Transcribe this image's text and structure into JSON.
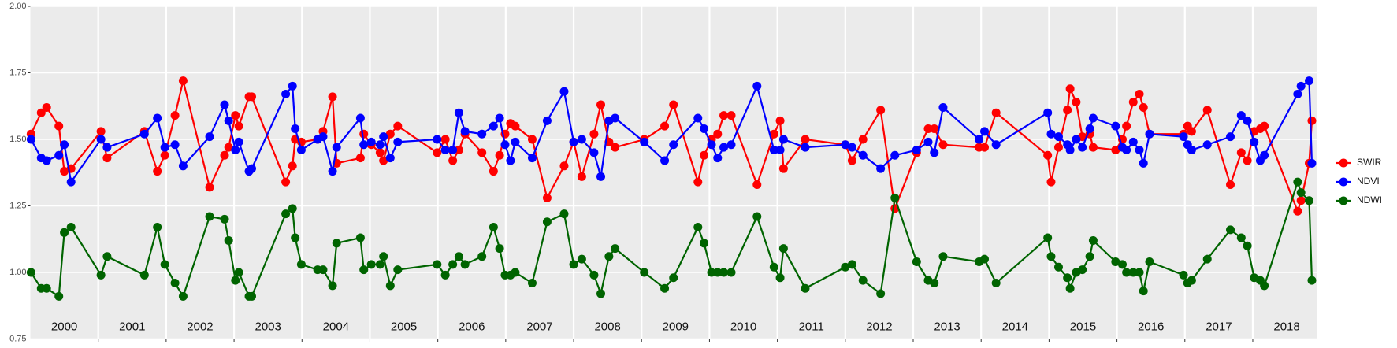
{
  "chart_data": {
    "type": "line",
    "x": [
      2000.01,
      2000.16,
      2000.24,
      2000.42,
      2000.5,
      2000.6,
      2001.04,
      2001.13,
      2001.68,
      2001.87,
      2001.98,
      2002.13,
      2002.25,
      2002.64,
      2002.86,
      2002.92,
      2003.02,
      2003.07,
      2003.22,
      2003.26,
      2003.76,
      2003.86,
      2003.9,
      2003.99,
      2004.23,
      2004.31,
      2004.45,
      2004.51,
      2004.86,
      2004.91,
      2005.02,
      2005.15,
      2005.2,
      2005.3,
      2005.41,
      2005.99,
      2006.11,
      2006.22,
      2006.31,
      2006.4,
      2006.65,
      2006.82,
      2006.91,
      2006.99,
      2007.07,
      2007.14,
      2007.39,
      2007.61,
      2007.86,
      2008.0,
      2008.12,
      2008.3,
      2008.4,
      2008.52,
      2008.61,
      2009.04,
      2009.34,
      2009.47,
      2009.83,
      2009.92,
      2010.03,
      2010.12,
      2010.21,
      2010.32,
      2010.7,
      2010.95,
      2011.04,
      2011.09,
      2011.41,
      2012.0,
      2012.1,
      2012.26,
      2012.52,
      2012.73,
      2013.05,
      2013.22,
      2013.31,
      2013.44,
      2013.97,
      2014.05,
      2014.22,
      2014.98,
      2015.03,
      2015.14,
      2015.27,
      2015.31,
      2015.4,
      2015.49,
      2015.6,
      2015.65,
      2015.98,
      2016.08,
      2016.14,
      2016.24,
      2016.33,
      2016.39,
      2016.48,
      2016.98,
      2017.04,
      2017.1,
      2017.33,
      2017.67,
      2017.83,
      2017.92,
      2018.02,
      2018.11,
      2018.17,
      2018.66,
      2018.71,
      2018.83,
      2018.87
    ],
    "series": [
      {
        "name": "SWIR",
        "color": "#ff0000",
        "values": [
          1.52,
          1.6,
          1.62,
          1.55,
          1.38,
          1.39,
          1.53,
          1.43,
          1.53,
          1.38,
          1.44,
          1.59,
          1.72,
          1.32,
          1.44,
          1.47,
          1.59,
          1.55,
          1.66,
          1.66,
          1.34,
          1.4,
          1.5,
          1.49,
          1.5,
          1.53,
          1.66,
          1.41,
          1.43,
          1.52,
          1.48,
          1.45,
          1.42,
          1.52,
          1.55,
          1.45,
          1.5,
          1.42,
          1.46,
          1.52,
          1.45,
          1.38,
          1.44,
          1.52,
          1.56,
          1.55,
          1.5,
          1.28,
          1.4,
          1.49,
          1.36,
          1.52,
          1.63,
          1.49,
          1.47,
          1.5,
          1.55,
          1.63,
          1.34,
          1.44,
          1.5,
          1.52,
          1.59,
          1.59,
          1.33,
          1.52,
          1.57,
          1.39,
          1.5,
          1.48,
          1.42,
          1.5,
          1.61,
          1.24,
          1.45,
          1.54,
          1.54,
          1.48,
          1.47,
          1.47,
          1.6,
          1.44,
          1.34,
          1.47,
          1.61,
          1.69,
          1.64,
          1.51,
          1.52,
          1.47,
          1.46,
          1.5,
          1.55,
          1.64,
          1.67,
          1.62,
          1.52,
          1.52,
          1.55,
          1.53,
          1.61,
          1.33,
          1.45,
          1.42,
          1.53,
          1.54,
          1.55,
          1.23,
          1.27,
          1.41,
          1.57
        ]
      },
      {
        "name": "NDVI",
        "color": "#0000ff",
        "values": [
          1.5,
          1.43,
          1.42,
          1.44,
          1.48,
          1.34,
          1.5,
          1.47,
          1.52,
          1.58,
          1.47,
          1.48,
          1.4,
          1.51,
          1.63,
          1.57,
          1.46,
          1.49,
          1.38,
          1.39,
          1.67,
          1.7,
          1.54,
          1.46,
          1.5,
          1.51,
          1.38,
          1.47,
          1.58,
          1.48,
          1.49,
          1.48,
          1.51,
          1.43,
          1.49,
          1.5,
          1.46,
          1.46,
          1.6,
          1.53,
          1.52,
          1.55,
          1.58,
          1.48,
          1.42,
          1.49,
          1.43,
          1.57,
          1.68,
          1.49,
          1.5,
          1.45,
          1.36,
          1.57,
          1.58,
          1.49,
          1.42,
          1.48,
          1.58,
          1.54,
          1.48,
          1.43,
          1.47,
          1.48,
          1.7,
          1.46,
          1.46,
          1.5,
          1.47,
          1.48,
          1.47,
          1.44,
          1.39,
          1.44,
          1.46,
          1.49,
          1.45,
          1.62,
          1.5,
          1.53,
          1.48,
          1.6,
          1.52,
          1.51,
          1.48,
          1.46,
          1.5,
          1.47,
          1.54,
          1.58,
          1.55,
          1.47,
          1.46,
          1.49,
          1.46,
          1.41,
          1.52,
          1.51,
          1.48,
          1.46,
          1.48,
          1.51,
          1.59,
          1.57,
          1.49,
          1.42,
          1.44,
          1.67,
          1.7,
          1.72,
          1.41
        ]
      },
      {
        "name": "NDWI",
        "color": "#006400",
        "values": [
          1.0,
          0.94,
          0.94,
          0.91,
          1.15,
          1.17,
          0.99,
          1.06,
          0.99,
          1.17,
          1.03,
          0.96,
          0.91,
          1.21,
          1.2,
          1.12,
          0.97,
          1.0,
          0.91,
          0.91,
          1.22,
          1.24,
          1.13,
          1.03,
          1.01,
          1.01,
          0.95,
          1.11,
          1.13,
          1.01,
          1.03,
          1.03,
          1.06,
          0.95,
          1.01,
          1.03,
          0.99,
          1.03,
          1.06,
          1.03,
          1.06,
          1.17,
          1.09,
          0.99,
          0.99,
          1.0,
          0.96,
          1.19,
          1.22,
          1.03,
          1.05,
          0.99,
          0.92,
          1.06,
          1.09,
          1.0,
          0.94,
          0.98,
          1.17,
          1.11,
          1.0,
          1.0,
          1.0,
          1.0,
          1.21,
          1.02,
          0.98,
          1.09,
          0.94,
          1.02,
          1.03,
          0.97,
          0.92,
          1.28,
          1.04,
          0.97,
          0.96,
          1.06,
          1.04,
          1.05,
          0.96,
          1.13,
          1.06,
          1.02,
          0.98,
          0.94,
          1.0,
          1.01,
          1.06,
          1.12,
          1.04,
          1.03,
          1.0,
          1.0,
          1.0,
          0.93,
          1.04,
          0.99,
          0.96,
          0.97,
          1.05,
          1.16,
          1.13,
          1.1,
          0.98,
          0.97,
          0.95,
          1.34,
          1.3,
          1.27,
          0.97
        ]
      }
    ],
    "xlim": [
      2000,
      2018.94
    ],
    "xticks": [
      {
        "value": 2000.5,
        "label": "2000"
      },
      {
        "value": 2001.5,
        "label": "2001"
      },
      {
        "value": 2002.5,
        "label": "2002"
      },
      {
        "value": 2003.5,
        "label": "2003"
      },
      {
        "value": 2004.5,
        "label": "2004"
      },
      {
        "value": 2005.5,
        "label": "2005"
      },
      {
        "value": 2006.5,
        "label": "2006"
      },
      {
        "value": 2007.5,
        "label": "2007"
      },
      {
        "value": 2008.5,
        "label": "2008"
      },
      {
        "value": 2009.5,
        "label": "2009"
      },
      {
        "value": 2010.5,
        "label": "2010"
      },
      {
        "value": 2011.5,
        "label": "2011"
      },
      {
        "value": 2012.5,
        "label": "2012"
      },
      {
        "value": 2013.5,
        "label": "2013"
      },
      {
        "value": 2014.5,
        "label": "2014"
      },
      {
        "value": 2015.5,
        "label": "2015"
      },
      {
        "value": 2016.5,
        "label": "2016"
      },
      {
        "value": 2017.5,
        "label": "2017"
      },
      {
        "value": 2018.5,
        "label": "2018"
      }
    ],
    "xgrid": [
      2001,
      2002,
      2003,
      2004,
      2005,
      2006,
      2007,
      2008,
      2009,
      2010,
      2011,
      2012,
      2013,
      2014,
      2015,
      2016,
      2017,
      2018
    ],
    "ylim": [
      0.75,
      2.0
    ],
    "yticks": [
      {
        "value": 0.75,
        "label": "0.75"
      },
      {
        "value": 1.0,
        "label": "1.00"
      },
      {
        "value": 1.25,
        "label": "1.25"
      },
      {
        "value": 1.5,
        "label": "1.50"
      },
      {
        "value": 1.75,
        "label": "1.75"
      },
      {
        "value": 2.0,
        "label": "2.00"
      }
    ],
    "grid": true,
    "legend": "right"
  }
}
